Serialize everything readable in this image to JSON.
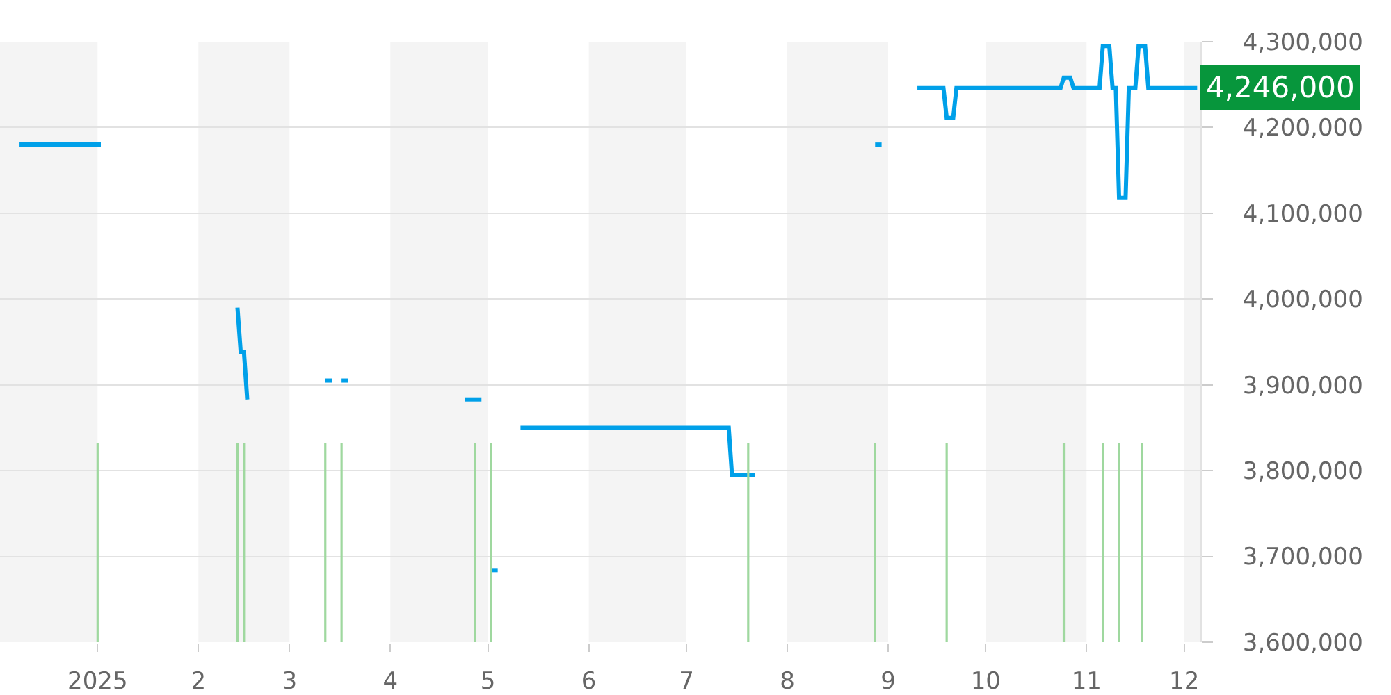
{
  "chart_data": {
    "type": "line",
    "series": [
      {
        "color": "#00a0e9",
        "x": [
          "2024-12-08",
          "2025-01-02",
          "2025-01-20",
          "2025-02-13",
          "2025-02-14",
          "2025-02-15",
          "2025-02-16",
          "2025-02-25",
          "2025-03-12",
          "2025-03-14",
          "2025-03-15",
          "2025-03-17",
          "2025-03-19",
          "2025-04-05",
          "2025-04-24",
          "2025-04-29",
          "2025-04-30",
          "2025-05-02",
          "2025-05-04",
          "2025-05-07",
          "2025-05-11",
          "2025-07-14",
          "2025-07-15",
          "2025-07-22",
          "2025-08-10",
          "2025-08-28",
          "2025-08-30",
          "2025-09-04",
          "2025-09-10",
          "2025-09-18",
          "2025-09-19",
          "2025-09-21",
          "2025-09-22",
          "2025-10-24",
          "2025-10-25",
          "2025-10-27",
          "2025-10-28",
          "2025-11-05",
          "2025-11-06",
          "2025-11-08",
          "2025-11-09",
          "2025-11-10",
          "2025-11-11",
          "2025-11-13",
          "2025-11-14",
          "2025-11-16",
          "2025-11-17",
          "2025-11-19",
          "2025-11-20",
          "2025-12-05"
        ],
        "values": [
          4180000,
          4180000,
          null,
          3990000,
          3938000,
          3938000,
          3883000,
          null,
          3905000,
          3905000,
          null,
          3905000,
          3905000,
          null,
          3883000,
          3883000,
          null,
          3684000,
          3684000,
          null,
          3850000,
          3850000,
          3795000,
          3795000,
          null,
          4180000,
          4180000,
          null,
          4246000,
          4246000,
          4211000,
          4211000,
          4246000,
          4246000,
          4258000,
          4258000,
          4246000,
          4246000,
          4295000,
          4295000,
          4246000,
          4246000,
          4118000,
          4118000,
          4246000,
          4246000,
          4295000,
          4295000,
          4246000,
          4246000
        ]
      }
    ],
    "xlim": [
      "2024-12-02",
      "2025-12-06"
    ],
    "xticks": [
      {
        "value": "2025-01-01",
        "label": "2025"
      },
      {
        "value": "2025-02-01",
        "label": "2"
      },
      {
        "value": "2025-03-01",
        "label": "3"
      },
      {
        "value": "2025-04-01",
        "label": "4"
      },
      {
        "value": "2025-05-01",
        "label": "5"
      },
      {
        "value": "2025-06-01",
        "label": "6"
      },
      {
        "value": "2025-07-01",
        "label": "7"
      },
      {
        "value": "2025-08-01",
        "label": "8"
      },
      {
        "value": "2025-09-01",
        "label": "9"
      },
      {
        "value": "2025-10-01",
        "label": "10"
      },
      {
        "value": "2025-11-01",
        "label": "11"
      },
      {
        "value": "2025-12-01",
        "label": "12"
      }
    ],
    "ylim": [
      3600000,
      4300000
    ],
    "yticks": [
      {
        "value": 3600000,
        "label": "3,600,000"
      },
      {
        "value": 3700000,
        "label": "3,700,000"
      },
      {
        "value": 3800000,
        "label": "3,800,000"
      },
      {
        "value": 3900000,
        "label": "3,900,000"
      },
      {
        "value": 4000000,
        "label": "4,000,000"
      },
      {
        "value": 4100000,
        "label": "4,100,000"
      },
      {
        "value": 4200000,
        "label": "4,200,000"
      },
      {
        "value": 4300000,
        "label": "4,300,000"
      }
    ],
    "grid": "y",
    "bands": [
      {
        "axis": "x",
        "from": "2024-12-02",
        "to": "2025-01-01",
        "color": "#f4f4f4"
      },
      {
        "axis": "x",
        "from": "2025-02-01",
        "to": "2025-03-01",
        "color": "#f4f4f4"
      },
      {
        "axis": "x",
        "from": "2025-04-01",
        "to": "2025-05-01",
        "color": "#f4f4f4"
      },
      {
        "axis": "x",
        "from": "2025-06-01",
        "to": "2025-07-01",
        "color": "#f4f4f4"
      },
      {
        "axis": "x",
        "from": "2025-08-01",
        "to": "2025-09-01",
        "color": "#f4f4f4"
      },
      {
        "axis": "x",
        "from": "2025-10-01",
        "to": "2025-11-01",
        "color": "#f4f4f4"
      },
      {
        "axis": "x",
        "from": "2025-12-01",
        "to": "2025-12-06",
        "color": "#f4f4f4"
      }
    ],
    "ref_lines": [
      {
        "axis": "x",
        "value": "2025-01-01",
        "color": "#9fd89f"
      },
      {
        "axis": "x",
        "value": "2025-02-13",
        "color": "#9fd89f"
      },
      {
        "axis": "x",
        "value": "2025-02-15",
        "color": "#9fd89f"
      },
      {
        "axis": "x",
        "value": "2025-03-12",
        "color": "#9fd89f"
      },
      {
        "axis": "x",
        "value": "2025-03-17",
        "color": "#9fd89f"
      },
      {
        "axis": "x",
        "value": "2025-04-27",
        "color": "#9fd89f"
      },
      {
        "axis": "x",
        "value": "2025-05-02",
        "color": "#9fd89f"
      },
      {
        "axis": "x",
        "value": "2025-07-20",
        "color": "#9fd89f"
      },
      {
        "axis": "x",
        "value": "2025-08-28",
        "color": "#9fd89f"
      },
      {
        "axis": "x",
        "value": "2025-09-19",
        "color": "#9fd89f"
      },
      {
        "axis": "x",
        "value": "2025-10-25",
        "color": "#9fd89f"
      },
      {
        "axis": "x",
        "value": "2025-11-06",
        "color": "#9fd89f"
      },
      {
        "axis": "x",
        "value": "2025-11-11",
        "color": "#9fd89f"
      },
      {
        "axis": "x",
        "value": "2025-11-18",
        "color": "#9fd89f"
      }
    ],
    "annotations": [
      "4,246,000"
    ]
  }
}
